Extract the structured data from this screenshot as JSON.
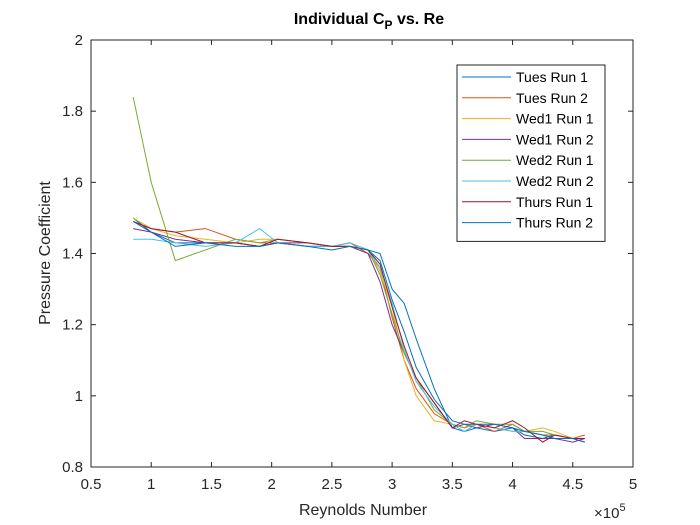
{
  "chart_data": {
    "type": "line",
    "title": "Individual C",
    "title_subscript": "P",
    "title_suffix": " vs. Re",
    "xlabel": "Reynolds Number",
    "ylabel": "Pressure Coefficient",
    "x_multiplier_label": "×10",
    "x_multiplier_exponent": "5",
    "xlim": [
      0.5,
      5
    ],
    "ylim": [
      0.8,
      2
    ],
    "xticks": [
      0.5,
      1,
      1.5,
      2,
      2.5,
      3,
      3.5,
      4,
      4.5,
      5
    ],
    "xtick_labels": [
      "0.5",
      "1",
      "1.5",
      "2",
      "2.5",
      "3",
      "3.5",
      "4",
      "4.5",
      "5"
    ],
    "yticks": [
      0.8,
      1,
      1.2,
      1.4,
      1.6,
      1.8,
      2
    ],
    "ytick_labels": [
      "0.8",
      "1",
      "1.2",
      "1.4",
      "1.6",
      "1.8",
      "2"
    ],
    "grid": false,
    "legend_position": "top-right",
    "x": [
      0.85,
      1.0,
      1.2,
      1.45,
      1.7,
      1.9,
      2.05,
      2.3,
      2.5,
      2.65,
      2.8,
      2.9,
      3.0,
      3.1,
      3.2,
      3.35,
      3.5,
      3.6,
      3.7,
      3.85,
      4.0,
      4.1,
      4.25,
      4.35,
      4.5,
      4.6
    ],
    "series": [
      {
        "name": "Tues Run 1",
        "color": "#0072BD",
        "values": [
          1.5,
          1.46,
          1.43,
          1.43,
          1.43,
          1.42,
          1.43,
          1.42,
          1.42,
          1.42,
          1.41,
          1.4,
          1.3,
          1.26,
          1.16,
          1.02,
          0.91,
          0.9,
          0.91,
          0.9,
          0.91,
          0.89,
          0.88,
          0.89,
          0.88,
          0.87
        ]
      },
      {
        "name": "Tues Run 2",
        "color": "#D95319",
        "values": [
          1.49,
          1.47,
          1.46,
          1.47,
          1.44,
          1.43,
          1.43,
          1.42,
          1.42,
          1.43,
          1.4,
          1.36,
          1.22,
          1.1,
          1.02,
          0.95,
          0.92,
          0.91,
          0.92,
          0.9,
          0.92,
          0.9,
          0.89,
          0.89,
          0.88,
          0.89
        ]
      },
      {
        "name": "Wed1 Run 1",
        "color": "#EDB120",
        "values": [
          1.5,
          1.47,
          1.45,
          1.44,
          1.43,
          1.44,
          1.44,
          1.43,
          1.42,
          1.43,
          1.41,
          1.35,
          1.25,
          1.1,
          1.0,
          0.93,
          0.92,
          0.91,
          0.92,
          0.91,
          0.9,
          0.9,
          0.91,
          0.9,
          0.88,
          0.88
        ]
      },
      {
        "name": "Wed1 Run 2",
        "color": "#7E2F8E",
        "values": [
          1.47,
          1.46,
          1.44,
          1.43,
          1.43,
          1.42,
          1.43,
          1.43,
          1.42,
          1.42,
          1.4,
          1.32,
          1.2,
          1.12,
          1.05,
          0.98,
          0.91,
          0.92,
          0.91,
          0.92,
          0.91,
          0.88,
          0.88,
          0.88,
          0.87,
          0.88
        ]
      },
      {
        "name": "Wed2 Run 1",
        "color": "#77AC30",
        "values": [
          1.84,
          1.6,
          1.38,
          1.41,
          1.44,
          1.43,
          1.44,
          1.43,
          1.42,
          1.42,
          1.41,
          1.34,
          1.23,
          1.12,
          1.05,
          0.96,
          0.92,
          0.91,
          0.93,
          0.92,
          0.92,
          0.9,
          0.9,
          0.89,
          0.88,
          0.88
        ]
      },
      {
        "name": "Wed2 Run 2",
        "color": "#4DBEEE",
        "values": [
          1.44,
          1.44,
          1.43,
          1.42,
          1.43,
          1.47,
          1.43,
          1.42,
          1.42,
          1.43,
          1.41,
          1.36,
          1.26,
          1.13,
          1.04,
          0.97,
          0.92,
          0.9,
          0.92,
          0.91,
          0.9,
          0.9,
          0.89,
          0.88,
          0.88,
          0.88
        ]
      },
      {
        "name": "Thurs Run 1",
        "color": "#A2142F",
        "values": [
          1.49,
          1.47,
          1.46,
          1.43,
          1.43,
          1.42,
          1.44,
          1.43,
          1.42,
          1.42,
          1.41,
          1.37,
          1.25,
          1.14,
          1.05,
          0.98,
          0.91,
          0.93,
          0.92,
          0.91,
          0.93,
          0.91,
          0.87,
          0.89,
          0.88,
          0.88
        ]
      },
      {
        "name": "Thurs Run 2",
        "color": "#0072BD",
        "values": [
          1.49,
          1.46,
          1.42,
          1.43,
          1.42,
          1.42,
          1.43,
          1.42,
          1.41,
          1.42,
          1.41,
          1.38,
          1.27,
          1.18,
          1.08,
          0.99,
          0.93,
          0.92,
          0.92,
          0.92,
          0.91,
          0.9,
          0.89,
          0.88,
          0.88,
          0.87
        ]
      }
    ]
  }
}
